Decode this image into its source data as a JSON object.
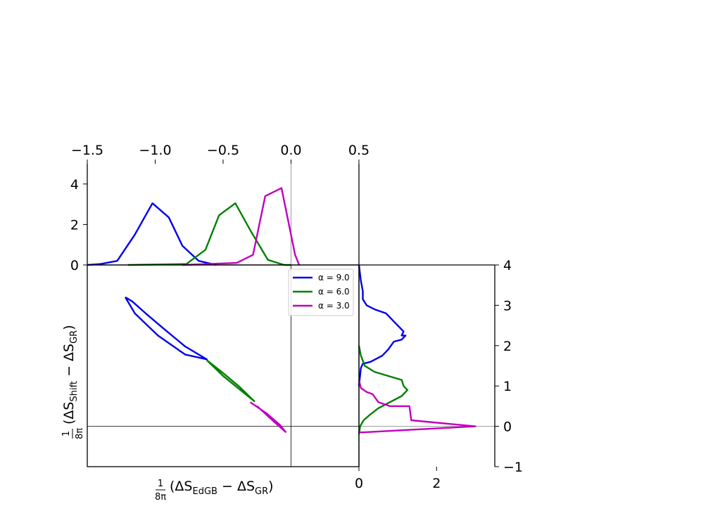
{
  "chart_data": [
    {
      "panel": "top-marginal",
      "type": "line",
      "xlim": [
        -1.5,
        0.5
      ],
      "ylim": [
        0,
        5
      ],
      "x_ticks": [
        "−1.5",
        "−1.0",
        "−0.5",
        "0.0",
        "0.5"
      ],
      "y_ticks": [
        "0",
        "2",
        "4"
      ],
      "series": [
        {
          "name": "α = 9.0",
          "color": "#0000ee",
          "x": [
            -1.5,
            -1.4,
            -1.28,
            -1.15,
            -1.02,
            -0.9,
            -0.8,
            -0.68,
            -0.55
          ],
          "y": [
            0,
            0.05,
            0.2,
            1.5,
            3.05,
            2.35,
            0.95,
            0.2,
            0
          ]
        },
        {
          "name": "α = 6.0",
          "color": "#008000",
          "x": [
            -1.2,
            -0.77,
            -0.63,
            -0.53,
            -0.41,
            -0.29,
            -0.17,
            -0.05,
            0.0
          ],
          "y": [
            0,
            0.05,
            0.75,
            2.45,
            3.05,
            1.6,
            0.25,
            0,
            0
          ]
        },
        {
          "name": "α = 3.0",
          "color": "#c000c0",
          "x": [
            -0.8,
            -0.4,
            -0.28,
            -0.19,
            -0.07,
            0.03,
            0.06
          ],
          "y": [
            0,
            0.1,
            0.5,
            3.4,
            3.8,
            0.5,
            0
          ]
        }
      ]
    },
    {
      "panel": "main",
      "type": "line",
      "xlabel": "1/8π (ΔS_EdGB − ΔS_GR)",
      "ylabel": "1/8π (ΔS_Shift − ΔS_GR)",
      "xlim": [
        -1.5,
        0.5
      ],
      "ylim": [
        -1,
        4
      ],
      "legend_position": "upper-center",
      "series": [
        {
          "name": "α = 9.0",
          "color": "#0000ee",
          "x": [
            -1.22,
            -1.17,
            -1.07,
            -0.93,
            -0.78,
            -0.62,
            -0.78,
            -0.98,
            -1.15,
            -1.22
          ],
          "y": [
            3.2,
            3.1,
            2.8,
            2.4,
            1.98,
            1.66,
            1.78,
            2.25,
            2.8,
            3.2
          ]
        },
        {
          "name": "α = 6.0",
          "color": "#008000",
          "x": [
            -0.62,
            -0.5,
            -0.38,
            -0.27,
            -0.5,
            -0.62
          ],
          "y": [
            1.64,
            1.32,
            0.98,
            0.62,
            1.25,
            1.64
          ]
        },
        {
          "name": "α = 3.0",
          "color": "#c000c0",
          "x": [
            -0.3,
            -0.18,
            -0.08,
            -0.04,
            -0.12,
            -0.25
          ],
          "y": [
            0.6,
            0.32,
            0.03,
            -0.14,
            0.1,
            0.5
          ]
        }
      ]
    },
    {
      "panel": "right-marginal",
      "type": "line",
      "xlim": [
        0,
        3.5
      ],
      "ylim": [
        -1,
        4
      ],
      "x_ticks": [
        "0",
        "2"
      ],
      "y_ticks": [
        "−1",
        "0",
        "1",
        "2",
        "3",
        "4"
      ],
      "series": [
        {
          "name": "α = 9.0",
          "color": "#0000ee",
          "x": [
            0.0,
            0.05,
            0.1,
            0.1,
            0.2,
            0.4,
            0.7,
            0.9,
            1.05,
            1.15,
            1.1,
            1.2,
            1.1,
            0.9,
            0.75,
            0.6,
            0.3,
            0.1,
            0.05,
            0.0
          ],
          "y": [
            4.0,
            3.6,
            3.35,
            3.15,
            3.0,
            2.9,
            2.8,
            2.6,
            2.45,
            2.35,
            2.25,
            2.25,
            2.15,
            2.1,
            1.9,
            1.75,
            1.6,
            1.55,
            1.45,
            1.0
          ]
        },
        {
          "name": "α = 6.0",
          "color": "#008000",
          "x": [
            0.0,
            0.05,
            0.15,
            0.4,
            0.75,
            1.1,
            1.15,
            1.25,
            1.1,
            0.8,
            0.5,
            0.3,
            0.12,
            0.03,
            0.0
          ],
          "y": [
            2.0,
            1.75,
            1.5,
            1.35,
            1.25,
            1.15,
            1.0,
            0.9,
            0.75,
            0.6,
            0.45,
            0.3,
            0.15,
            0.0,
            -0.2
          ]
        },
        {
          "name": "α = 3.0",
          "color": "#c000c0",
          "x": [
            0.0,
            0.05,
            0.2,
            0.35,
            0.5,
            0.8,
            1.3,
            1.35,
            3.0,
            0.1,
            0.0
          ],
          "y": [
            1.15,
            0.95,
            0.85,
            0.8,
            0.6,
            0.5,
            0.5,
            0.15,
            0.0,
            -0.15,
            -0.15
          ]
        }
      ]
    }
  ]
}
